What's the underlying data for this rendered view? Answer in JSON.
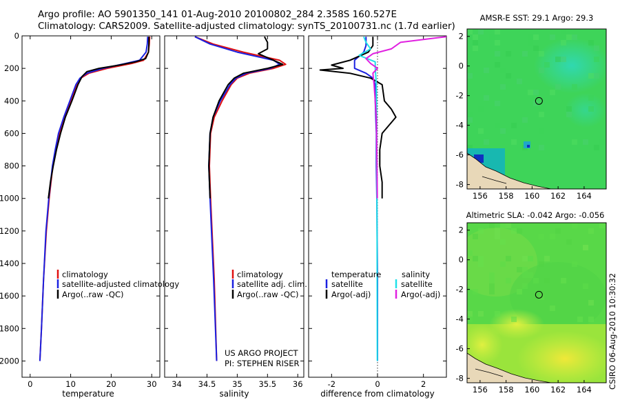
{
  "header": {
    "line1": "Argo profile: AO 5901350_141 01-Aug-2010 20100802_284 2.358S 160.527E",
    "line2": "Climatology: CARS2009. Satellite-adjusted climatology: synTS_20100731.nc (1.7d earlier)"
  },
  "footer": {
    "credit": "CSIRO 06-Aug-2010 10:30:32"
  },
  "colors": {
    "red": "#e01010",
    "blue": "#1a20e0",
    "black": "#000000",
    "cyan": "#20e0e8",
    "magenta": "#e020e0"
  },
  "chart_data": [
    {
      "type": "line",
      "id": "temperature",
      "xlabel": "temperature",
      "ylabel": "",
      "xlim": [
        -2,
        32
      ],
      "ylim": [
        2100,
        0
      ],
      "xticks": [
        0,
        10,
        20,
        30
      ],
      "yticks": [
        0,
        200,
        400,
        600,
        800,
        1000,
        1200,
        1400,
        1600,
        1800,
        2000
      ],
      "legend": [
        "climatology",
        "satellite-adjusted climatology",
        "Argo(..raw -QC)"
      ],
      "series": [
        {
          "name": "climatology",
          "color": "red",
          "depth": [
            5,
            50,
            100,
            150,
            170,
            200,
            230,
            260,
            300,
            400,
            500,
            600,
            700,
            800,
            1000,
            1200,
            1500,
            1800,
            2000
          ],
          "value": [
            29.5,
            29.4,
            29.2,
            28.0,
            25.0,
            19.0,
            14.5,
            12.5,
            11.5,
            10.0,
            8.5,
            7.2,
            6.3,
            5.6,
            4.7,
            4.0,
            3.3,
            2.8,
            2.4
          ]
        },
        {
          "name": "satellite-adjusted climatology",
          "color": "blue",
          "depth": [
            5,
            50,
            100,
            150,
            170,
            200,
            230,
            260,
            300,
            400,
            500,
            600,
            700,
            800,
            1000,
            1200,
            1500,
            1800,
            2000
          ],
          "value": [
            29.0,
            28.9,
            28.6,
            27.0,
            23.5,
            18.0,
            14.0,
            12.3,
            11.3,
            9.8,
            8.3,
            7.0,
            6.2,
            5.5,
            4.6,
            3.9,
            3.3,
            2.8,
            2.4
          ]
        },
        {
          "name": "Argo(..raw -QC)",
          "color": "black",
          "depth": [
            5,
            50,
            100,
            140,
            160,
            180,
            200,
            220,
            250,
            300,
            400,
            500,
            600,
            700,
            800,
            900,
            1000
          ],
          "value": [
            29.3,
            29.3,
            29.2,
            28.5,
            26.0,
            22.0,
            17.0,
            14.0,
            12.8,
            11.8,
            10.3,
            8.7,
            7.5,
            6.5,
            5.7,
            5.0,
            4.5
          ]
        }
      ]
    },
    {
      "type": "line",
      "id": "salinity",
      "xlabel": "salinity",
      "ylabel": "",
      "xlim": [
        33.8,
        36.1
      ],
      "ylim": [
        2100,
        0
      ],
      "xticks": [
        34,
        34.5,
        35,
        35.5,
        36
      ],
      "xticklabels": [
        "34",
        "34.5",
        "35",
        "35.5",
        "36"
      ],
      "legend": [
        "climatology",
        "satellite adj. clim.",
        "Argo(..raw -QC)"
      ],
      "annotation": [
        "US ARGO PROJECT",
        "PI: STEPHEN RISER"
      ],
      "series": [
        {
          "name": "climatology",
          "color": "red",
          "depth": [
            5,
            50,
            100,
            150,
            175,
            200,
            230,
            260,
            300,
            400,
            500,
            600,
            800,
            1000,
            1500,
            2000
          ],
          "value": [
            34.3,
            34.6,
            35.1,
            35.7,
            35.8,
            35.6,
            35.2,
            35.0,
            34.9,
            34.75,
            34.62,
            34.56,
            34.54,
            34.56,
            34.62,
            34.66
          ]
        },
        {
          "name": "satellite adj. clim.",
          "color": "blue",
          "depth": [
            5,
            50,
            100,
            150,
            175,
            200,
            230,
            260,
            300,
            400,
            500,
            600,
            800,
            1000,
            1500,
            2000
          ],
          "value": [
            34.3,
            34.55,
            35.0,
            35.6,
            35.7,
            35.55,
            35.15,
            34.98,
            34.88,
            34.72,
            34.6,
            34.55,
            34.53,
            34.55,
            34.61,
            34.66
          ]
        },
        {
          "name": "Argo(..raw -QC)",
          "color": "black",
          "depth": [
            5,
            40,
            80,
            110,
            150,
            175,
            200,
            230,
            260,
            300,
            400,
            500,
            600,
            800,
            1000
          ],
          "value": [
            35.45,
            35.5,
            35.5,
            35.35,
            35.6,
            35.75,
            35.5,
            35.1,
            34.95,
            34.85,
            34.7,
            34.6,
            34.55,
            34.53,
            34.55
          ]
        }
      ]
    },
    {
      "type": "line",
      "id": "difference",
      "xlabel": "difference from climatology",
      "ylabel": "",
      "xlim": [
        -3,
        3
      ],
      "ylim": [
        2100,
        0
      ],
      "xticks": [
        -2,
        0,
        2
      ],
      "legend_left": {
        "heading": "temperature",
        "items": [
          "satellite",
          "Argo(-adj)"
        ]
      },
      "legend_right": {
        "heading": "salinity",
        "items": [
          "satellite",
          "Argo(-adj)"
        ]
      },
      "series": [
        {
          "name": "temperature satellite",
          "color": "blue",
          "depth": [
            5,
            60,
            100,
            150,
            200,
            230,
            260,
            300,
            400,
            600,
            800,
            1000,
            1500,
            2000
          ],
          "value": [
            -0.5,
            -0.5,
            -0.6,
            -1.0,
            -1.0,
            -0.5,
            -0.2,
            -0.1,
            -0.1,
            -0.05,
            -0.05,
            -0.03,
            0,
            0
          ]
        },
        {
          "name": "temperature Argo(-adj)",
          "color": "black",
          "depth": [
            5,
            60,
            100,
            150,
            180,
            200,
            210,
            230,
            260,
            300,
            400,
            450,
            500,
            550,
            600,
            700,
            800,
            900,
            1000
          ],
          "value": [
            -0.2,
            -0.2,
            -0.4,
            -1.2,
            -2.0,
            -1.5,
            -2.5,
            -1.2,
            -0.3,
            0.2,
            0.3,
            0.6,
            0.8,
            0.5,
            0.2,
            0.1,
            0.1,
            0.2,
            0.2
          ]
        },
        {
          "name": "salinity satellite",
          "color": "cyan",
          "depth": [
            5,
            40,
            80,
            120,
            160,
            200,
            300,
            500,
            800,
            1200,
            2000
          ],
          "value": [
            -0.6,
            -0.5,
            -0.3,
            -0.8,
            -0.1,
            -0.1,
            -0.05,
            -0.04,
            -0.03,
            -0.02,
            -0.01
          ]
        },
        {
          "name": "salinity Argo(-adj)",
          "color": "magenta",
          "depth": [
            5,
            40,
            80,
            110,
            140,
            170,
            200,
            230,
            300,
            400,
            500,
            800,
            1000
          ],
          "value": [
            3.0,
            1.0,
            0.6,
            -0.2,
            -0.5,
            -0.3,
            0.0,
            -0.2,
            -0.15,
            -0.1,
            -0.05,
            -0.02,
            -0.01
          ]
        }
      ]
    },
    {
      "type": "heatmap",
      "id": "sst-map",
      "title": "AMSR-E SST: 29.1  Argo: 29.3",
      "xlim": [
        155,
        165.7
      ],
      "ylim": [
        -8.3,
        2.5
      ],
      "xticks": [
        156,
        158,
        160,
        162,
        164
      ],
      "yticks": [
        2,
        0,
        -2,
        -4,
        -6,
        -8
      ],
      "marker": {
        "lon": 160.527,
        "lat": -2.358
      }
    },
    {
      "type": "heatmap",
      "id": "sla-map",
      "title": "Altimetric SLA: -0.042  Argo: -0.056",
      "xlim": [
        155,
        165.7
      ],
      "ylim": [
        -8.3,
        2.5
      ],
      "xticks": [
        156,
        158,
        160,
        162,
        164
      ],
      "yticks": [
        2,
        0,
        -2,
        -4,
        -6,
        -8
      ],
      "marker": {
        "lon": 160.527,
        "lat": -2.358
      }
    }
  ]
}
